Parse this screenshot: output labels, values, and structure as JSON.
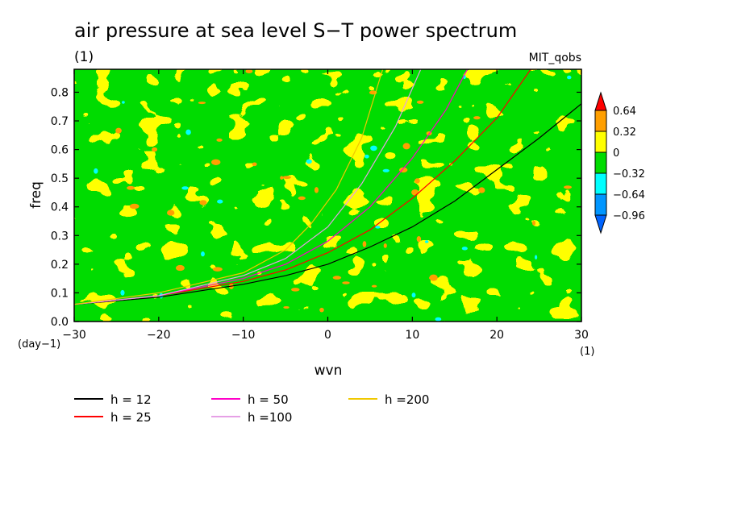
{
  "chart_data": {
    "type": "heatmap",
    "title": "air pressure at sea level S−T power spectrum",
    "subtitle": "(1)",
    "source_label": "MIT_qobs",
    "xlabel": "wvn",
    "ylabel": "freq",
    "x_unit": "(1)",
    "y_unit": "(day−1)",
    "xlim": [
      -30,
      30
    ],
    "ylim": [
      0,
      0.88
    ],
    "x_ticks": [
      -30,
      -20,
      -10,
      0,
      10,
      20,
      30
    ],
    "x_tick_labels": [
      "−30",
      "−20",
      "−10",
      "0",
      "10",
      "20",
      "30"
    ],
    "y_ticks": [
      0,
      0.1,
      0.2,
      0.3,
      0.4,
      0.5,
      0.6,
      0.7,
      0.8
    ],
    "y_tick_labels": [
      "0.0",
      "0.1",
      "0.2",
      "0.3",
      "0.4",
      "0.5",
      "0.6",
      "0.7",
      "0.8"
    ],
    "colorbar": {
      "levels": [
        0.64,
        0.32,
        0,
        -0.32,
        -0.64,
        -0.96
      ],
      "level_labels": [
        "0.64",
        "0.32",
        "0",
        "−0.32",
        "−0.64",
        "−0.96"
      ],
      "colors": [
        "#ff0000",
        "#ff9f00",
        "#ffff00",
        "#00dc00",
        "#00ffff",
        "#0096ff"
      ],
      "top_color": "#ff0000",
      "bottom_color": "#0064ff"
    },
    "field_fractions": {
      "yellow": 0.5,
      "green": 0.44,
      "orange": 0.04,
      "cyan": 0.02
    },
    "series": [
      {
        "name": "h = 12",
        "color": "#000000",
        "x": [
          -30,
          -20,
          -10,
          -5,
          0,
          5,
          10,
          15,
          20,
          25,
          30
        ],
        "y": [
          0.06,
          0.085,
          0.13,
          0.16,
          0.2,
          0.26,
          0.33,
          0.42,
          0.53,
          0.64,
          0.76
        ]
      },
      {
        "name": "h = 25",
        "color": "#ff0000",
        "x": [
          -30,
          -20,
          -10,
          -5,
          0,
          5,
          10,
          15,
          20,
          24
        ],
        "y": [
          0.06,
          0.09,
          0.14,
          0.18,
          0.24,
          0.32,
          0.43,
          0.56,
          0.71,
          0.88
        ]
      },
      {
        "name": "h = 50",
        "color": "#ff00c8",
        "x": [
          -30,
          -20,
          -10,
          -5,
          0,
          5,
          10,
          14,
          16.5
        ],
        "y": [
          0.06,
          0.09,
          0.15,
          0.2,
          0.28,
          0.4,
          0.57,
          0.74,
          0.88
        ]
      },
      {
        "name": "h =100",
        "color": "#e6a0e6",
        "x": [
          -30,
          -20,
          -10,
          -5,
          0,
          4,
          8,
          11
        ],
        "y": [
          0.06,
          0.09,
          0.16,
          0.22,
          0.33,
          0.48,
          0.68,
          0.88
        ]
      },
      {
        "name": "h =200",
        "color": "#f0c800",
        "x": [
          -30,
          -20,
          -10,
          -5,
          -2,
          1,
          4,
          6.5
        ],
        "y": [
          0.06,
          0.1,
          0.17,
          0.25,
          0.34,
          0.46,
          0.64,
          0.88
        ]
      }
    ],
    "legend": {
      "position": "bottom-left",
      "order": [
        "h = 12",
        "h = 25",
        "h = 50",
        "h =100",
        "h =200"
      ]
    },
    "grid": false
  }
}
